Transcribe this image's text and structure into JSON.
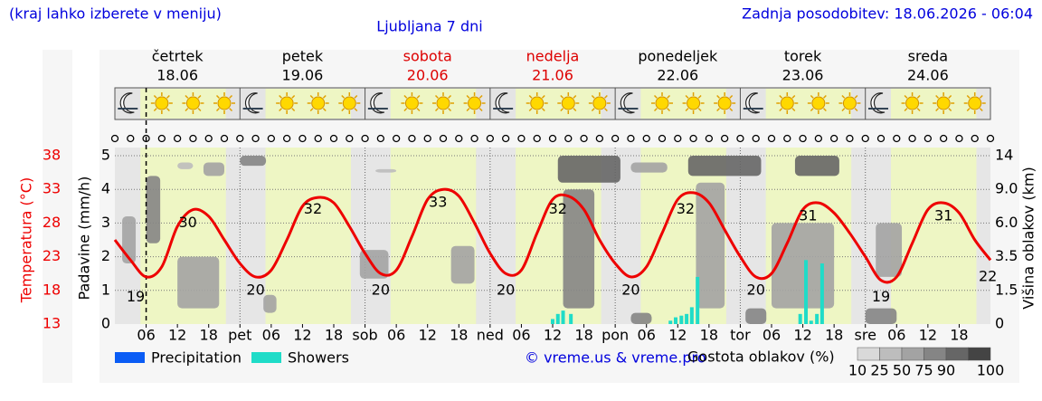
{
  "header": {
    "note": "(kraj lahko izberete v meniju)",
    "title": "Ljubljana 7 dni",
    "updated": "Zadnja posodobitev: 18.06.2026 - 06:04"
  },
  "chart_data": {
    "type": "meteogram",
    "days": [
      {
        "name": "četrtek",
        "date": "18.06",
        "color": "#000000"
      },
      {
        "name": "petek",
        "date": "19.06",
        "color": "#000000"
      },
      {
        "name": "sobota",
        "date": "20.06",
        "color": "#dd0000"
      },
      {
        "name": "nedelja",
        "date": "21.06",
        "color": "#dd0000"
      },
      {
        "name": "ponedeljek",
        "date": "22.06",
        "color": "#000000"
      },
      {
        "name": "torek",
        "date": "23.06",
        "color": "#000000"
      },
      {
        "name": "sreda",
        "date": "24.06",
        "color": "#000000"
      }
    ],
    "xlim": [
      0,
      168
    ],
    "xticks": [
      {
        "value": 6,
        "label": "06"
      },
      12,
      18,
      {
        "value": 24,
        "label": "pet"
      },
      {
        "value": 30,
        "label": "06"
      },
      {
        "value": 36,
        "label": "12"
      },
      {
        "value": 42,
        "label": "18"
      },
      {
        "value": 48,
        "label": "sob"
      },
      {
        "value": 54,
        "label": "06"
      },
      {
        "value": 60,
        "label": "12"
      },
      {
        "value": 66,
        "label": "18"
      },
      {
        "value": 72,
        "label": "ned"
      },
      {
        "value": 78,
        "label": "06"
      },
      {
        "value": 84,
        "label": "12"
      },
      {
        "value": 90,
        "label": "18"
      },
      {
        "value": 96,
        "label": "pon"
      },
      {
        "value": 102,
        "label": "06"
      },
      {
        "value": 108,
        "label": "12"
      },
      {
        "value": 114,
        "label": "18"
      },
      {
        "value": 120,
        "label": "tor"
      },
      {
        "value": 126,
        "label": "06"
      },
      {
        "value": 132,
        "label": "12"
      },
      {
        "value": 138,
        "label": "18"
      },
      {
        "value": 144,
        "label": "sre"
      },
      {
        "value": 150,
        "label": "06"
      },
      {
        "value": 156,
        "label": "12"
      },
      {
        "value": 162,
        "label": "18"
      }
    ],
    "daylight_hours": [
      4.9,
      21.3
    ],
    "now": 6,
    "temperature": {
      "axis_label": "Temperatura (°C)",
      "color": "#ee0000",
      "ylim": [
        13,
        38
      ],
      "yticks": [
        13,
        18,
        23,
        28,
        33,
        38
      ],
      "x": [
        0,
        3,
        6,
        9,
        12,
        15,
        18,
        21,
        24,
        27,
        30,
        33,
        36,
        39,
        42,
        45,
        48,
        51,
        54,
        57,
        60,
        63,
        66,
        69,
        72,
        75,
        78,
        81,
        84,
        87,
        90,
        93,
        96,
        99,
        102,
        105,
        108,
        111,
        114,
        117,
        120,
        123,
        126,
        129,
        132,
        135,
        138,
        141,
        144,
        147,
        150,
        153,
        156,
        159,
        162,
        165,
        168
      ],
      "values": [
        25.5,
        22.5,
        20.0,
        21.5,
        27.5,
        30.0,
        29.0,
        25.5,
        22.0,
        20.0,
        21.0,
        25.5,
        30.5,
        31.8,
        31.0,
        27.5,
        23.5,
        20.5,
        21.0,
        26.0,
        31.5,
        33.0,
        32.0,
        28.0,
        23.5,
        20.5,
        21.0,
        26.5,
        31.5,
        32.0,
        30.0,
        25.5,
        22.0,
        20.0,
        21.5,
        26.5,
        31.5,
        32.5,
        31.0,
        27.0,
        23.0,
        20.0,
        20.5,
        25.0,
        30.0,
        31.0,
        29.5,
        26.5,
        23.0,
        19.5,
        20.0,
        25.0,
        30.0,
        31.0,
        29.5,
        25.5,
        22.5
      ],
      "labels": {
        "x": [
          4,
          14,
          27,
          38,
          51,
          62,
          75,
          85,
          99,
          109.5,
          123,
          133,
          147,
          159,
          167.5
        ],
        "values": [
          19,
          30,
          20,
          32,
          20,
          33,
          20,
          32,
          20,
          32,
          20,
          31,
          19,
          31,
          22
        ]
      }
    },
    "ylabel": "Padavine (mm/h)",
    "ylim": [
      0,
      5
    ],
    "yticks": [
      0,
      1,
      2,
      3,
      4,
      5
    ],
    "y2label": "Višina oblakov (km)",
    "y2ticks": [
      0,
      1.5,
      3.5,
      {
        "value": 6,
        "label": "6.0"
      },
      {
        "value": 9,
        "label": "9.0"
      },
      14
    ],
    "series": [
      {
        "name": "Precipitation",
        "color": "#0a5cf5",
        "x": [],
        "values": []
      },
      {
        "name": "Showers",
        "color": "#1fdcc8",
        "x": [
          84,
          85,
          86,
          87.5,
          106.6,
          107.6,
          108.7,
          109.7,
          110.7,
          111.8,
          131.5,
          132.6,
          133.6,
          134.7,
          135.7
        ],
        "values": [
          0.15,
          0.3,
          0.4,
          0.3,
          0.1,
          0.2,
          0.25,
          0.3,
          0.5,
          1.4,
          0.3,
          1.9,
          0.1,
          0.3,
          1.8
        ]
      }
    ],
    "clouds": {
      "title": "Gostota oblakov (%)",
      "scale": [
        {
          "value": 10,
          "color": "#d9d9d9"
        },
        {
          "value": 25,
          "color": "#bdbdbd"
        },
        {
          "value": 50,
          "color": "#a3a3a3"
        },
        {
          "value": 75,
          "color": "#858585"
        },
        {
          "value": 90,
          "color": "#666666"
        },
        {
          "value": 100,
          "color": "#444444"
        }
      ],
      "cells": [
        {
          "x": [
            1.4,
            4
          ],
          "km": [
            3.1,
            6.6
          ],
          "density": 60
        },
        {
          "x": [
            6,
            8.7
          ],
          "km": [
            4.5,
            11
          ],
          "density": 80
        },
        {
          "x": [
            12,
            15
          ],
          "km": [
            12,
            13
          ],
          "density": 25
        },
        {
          "x": [
            17,
            21
          ],
          "km": [
            11,
            13
          ],
          "density": 60
        },
        {
          "x": [
            12,
            20
          ],
          "km": [
            0.7,
            3.5
          ],
          "density": 50
        },
        {
          "x": [
            24,
            29
          ],
          "km": [
            12.5,
            14
          ],
          "density": 75
        },
        {
          "x": [
            28.5,
            31
          ],
          "km": [
            0.5,
            1.3
          ],
          "density": 50
        },
        {
          "x": [
            50,
            54
          ],
          "km": [
            11.5,
            12
          ],
          "density": 25
        },
        {
          "x": [
            47,
            52.5
          ],
          "km": [
            2.2,
            4
          ],
          "density": 50
        },
        {
          "x": [
            64.5,
            69
          ],
          "km": [
            1.9,
            4.3
          ],
          "density": 60
        },
        {
          "x": [
            85,
            97
          ],
          "km": [
            10,
            14
          ],
          "density": 90
        },
        {
          "x": [
            86,
            92
          ],
          "km": [
            0.7,
            9
          ],
          "density": 75
        },
        {
          "x": [
            99,
            106
          ],
          "km": [
            11.5,
            13
          ],
          "density": 50
        },
        {
          "x": [
            110,
            124
          ],
          "km": [
            11,
            14
          ],
          "density": 90
        },
        {
          "x": [
            111.5,
            117
          ],
          "km": [
            0.7,
            10
          ],
          "density": 60
        },
        {
          "x": [
            99,
            103
          ],
          "km": [
            0,
            0.5
          ],
          "density": 75
        },
        {
          "x": [
            121,
            125
          ],
          "km": [
            0,
            0.7
          ],
          "density": 75
        },
        {
          "x": [
            130.5,
            139
          ],
          "km": [
            11,
            14
          ],
          "density": 90
        },
        {
          "x": [
            126,
            138
          ],
          "km": [
            0.7,
            6
          ],
          "density": 60
        },
        {
          "x": [
            144,
            150
          ],
          "km": [
            0,
            0.7
          ],
          "density": 75
        },
        {
          "x": [
            146,
            151
          ],
          "km": [
            2.3,
            6
          ],
          "density": 50
        }
      ]
    },
    "credit": "© vreme.us & vreme.pro"
  }
}
